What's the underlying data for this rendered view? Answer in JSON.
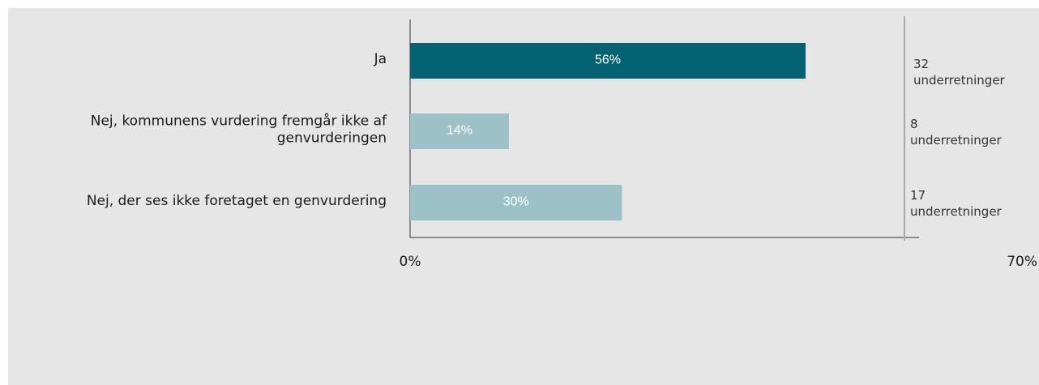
{
  "chart_data": {
    "type": "bar",
    "orientation": "horizontal",
    "categories": [
      [
        "Ja"
      ],
      [
        "Nej, kommunens vurdering fremgår ikke af",
        "genvurderingen"
      ],
      [
        "Nej, der ses ikke foretaget en genvurdering"
      ]
    ],
    "values": [
      56,
      14,
      30
    ],
    "value_labels": [
      "56%",
      "14%",
      "30%"
    ],
    "counts": [
      [
        "32",
        "underretninger"
      ],
      [
        "8",
        "underretninger"
      ],
      [
        "17",
        "underretninger"
      ]
    ],
    "xlim": [
      0,
      70
    ],
    "x_tick_labels": [
      "0%",
      "70%"
    ],
    "title": "",
    "xlabel": "",
    "ylabel": "",
    "grid": false,
    "colors": {
      "highlight": "#046273",
      "normal": "#9cc2c8",
      "panel_bg": "#e6e6e6",
      "axis": "#333333",
      "right_line": "#aaaaaa"
    }
  }
}
